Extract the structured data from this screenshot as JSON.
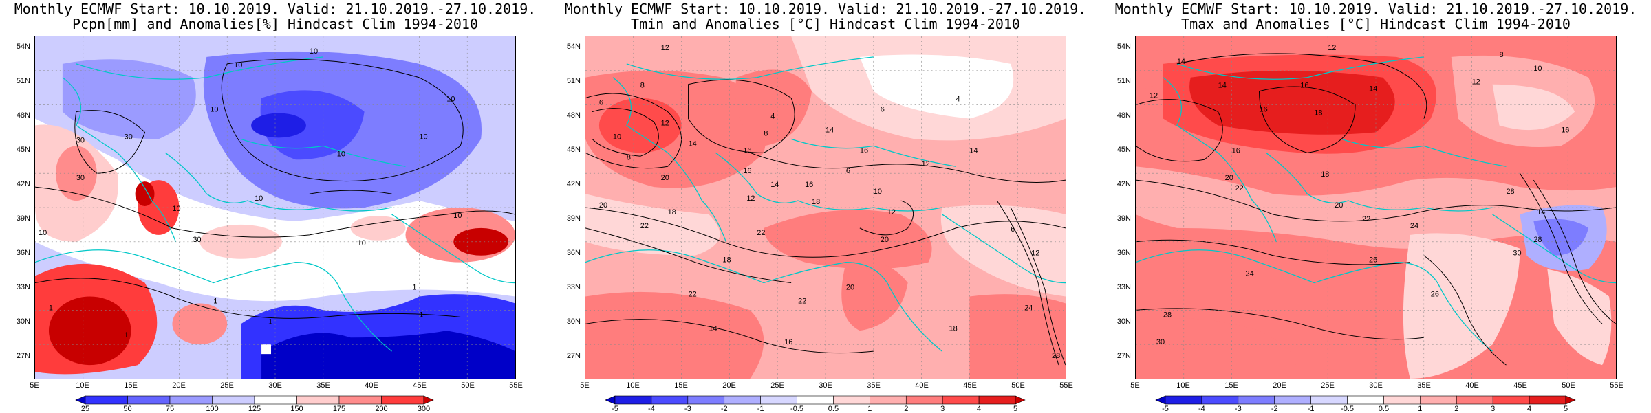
{
  "panels": [
    {
      "title_line1": "Monthly ECMWF Start: 10.10.2019. Valid: 21.10.2019.-27.10.2019.",
      "title_line2": "Pcpn[mm] and Anomalies[%] Hindcast Clim 1994-2010",
      "colorbar": {
        "labels": [
          "25",
          "50",
          "75",
          "100",
          "125",
          "150",
          "175",
          "200",
          "300"
        ],
        "colors": [
          "#0000c8",
          "#3232ff",
          "#6464ff",
          "#9b9bff",
          "#cdcdff",
          "#ffffff",
          "#ffcdcd",
          "#ff8c8c",
          "#ff3c3c",
          "#c80000"
        ]
      },
      "contour_labels": [
        "10",
        "10",
        "10",
        "10",
        "10",
        "10",
        "30",
        "30",
        "30",
        "10",
        "10",
        "1",
        "1",
        "1",
        "1",
        "1",
        "10",
        "10",
        "30",
        "1",
        "10"
      ]
    },
    {
      "title_line1": "Monthly ECMWF Start: 10.10.2019. Valid: 21.10.2019.-27.10.2019.",
      "title_line2": "Tmin and Anomalies [°C] Hindcast Clim 1994-2010",
      "colorbar": {
        "labels": [
          "-5",
          "-4",
          "-3",
          "-2",
          "-1",
          "-0.5",
          "0.5",
          "1",
          "2",
          "3",
          "4",
          "5"
        ],
        "colors": [
          "#0000c8",
          "#1e1ee6",
          "#4b4bff",
          "#7d7dff",
          "#afafff",
          "#d7d7ff",
          "#ffffff",
          "#ffd7d7",
          "#ffafaf",
          "#ff7d7d",
          "#ff4b4b",
          "#e61e1e",
          "#c80000"
        ]
      },
      "contour_labels": [
        "12",
        "8",
        "6",
        "10",
        "12",
        "14",
        "4",
        "8",
        "6",
        "4",
        "14",
        "16",
        "8",
        "20",
        "16",
        "20",
        "22",
        "18",
        "12",
        "14",
        "16",
        "6",
        "10",
        "18",
        "20",
        "22",
        "12",
        "14",
        "16",
        "18",
        "22",
        "12",
        "6",
        "20",
        "12",
        "14",
        "16",
        "22",
        "24",
        "28",
        "18"
      ]
    },
    {
      "title_line1": "Monthly ECMWF Start: 10.10.2019. Valid: 21.10.2019.-27.10.2019.",
      "title_line2": "Tmax and Anomalies [°C] Hindcast Clim 1994-2010",
      "colorbar": {
        "labels": [
          "-5",
          "-4",
          "-3",
          "-2",
          "-1",
          "-0.5",
          "0.5",
          "1",
          "2",
          "3",
          "4",
          "5"
        ],
        "colors": [
          "#0000c8",
          "#1e1ee6",
          "#4b4bff",
          "#7d7dff",
          "#afafff",
          "#d7d7ff",
          "#ffffff",
          "#ffd7d7",
          "#ffafaf",
          "#ff7d7d",
          "#ff4b4b",
          "#e61e1e",
          "#c80000"
        ]
      },
      "contour_labels": [
        "12",
        "14",
        "8",
        "10",
        "14",
        "16",
        "12",
        "18",
        "16",
        "14",
        "12",
        "16",
        "20",
        "22",
        "18",
        "24",
        "28",
        "14",
        "16",
        "20",
        "22",
        "26",
        "24",
        "28",
        "30",
        "26",
        "28",
        "30"
      ]
    }
  ],
  "lat_labels": [
    "54N",
    "51N",
    "48N",
    "45N",
    "42N",
    "39N",
    "36N",
    "33N",
    "30N",
    "27N"
  ],
  "lon_labels": [
    "5E",
    "10E",
    "15E",
    "20E",
    "25E",
    "30E",
    "35E",
    "40E",
    "45E",
    "50E",
    "55E"
  ]
}
